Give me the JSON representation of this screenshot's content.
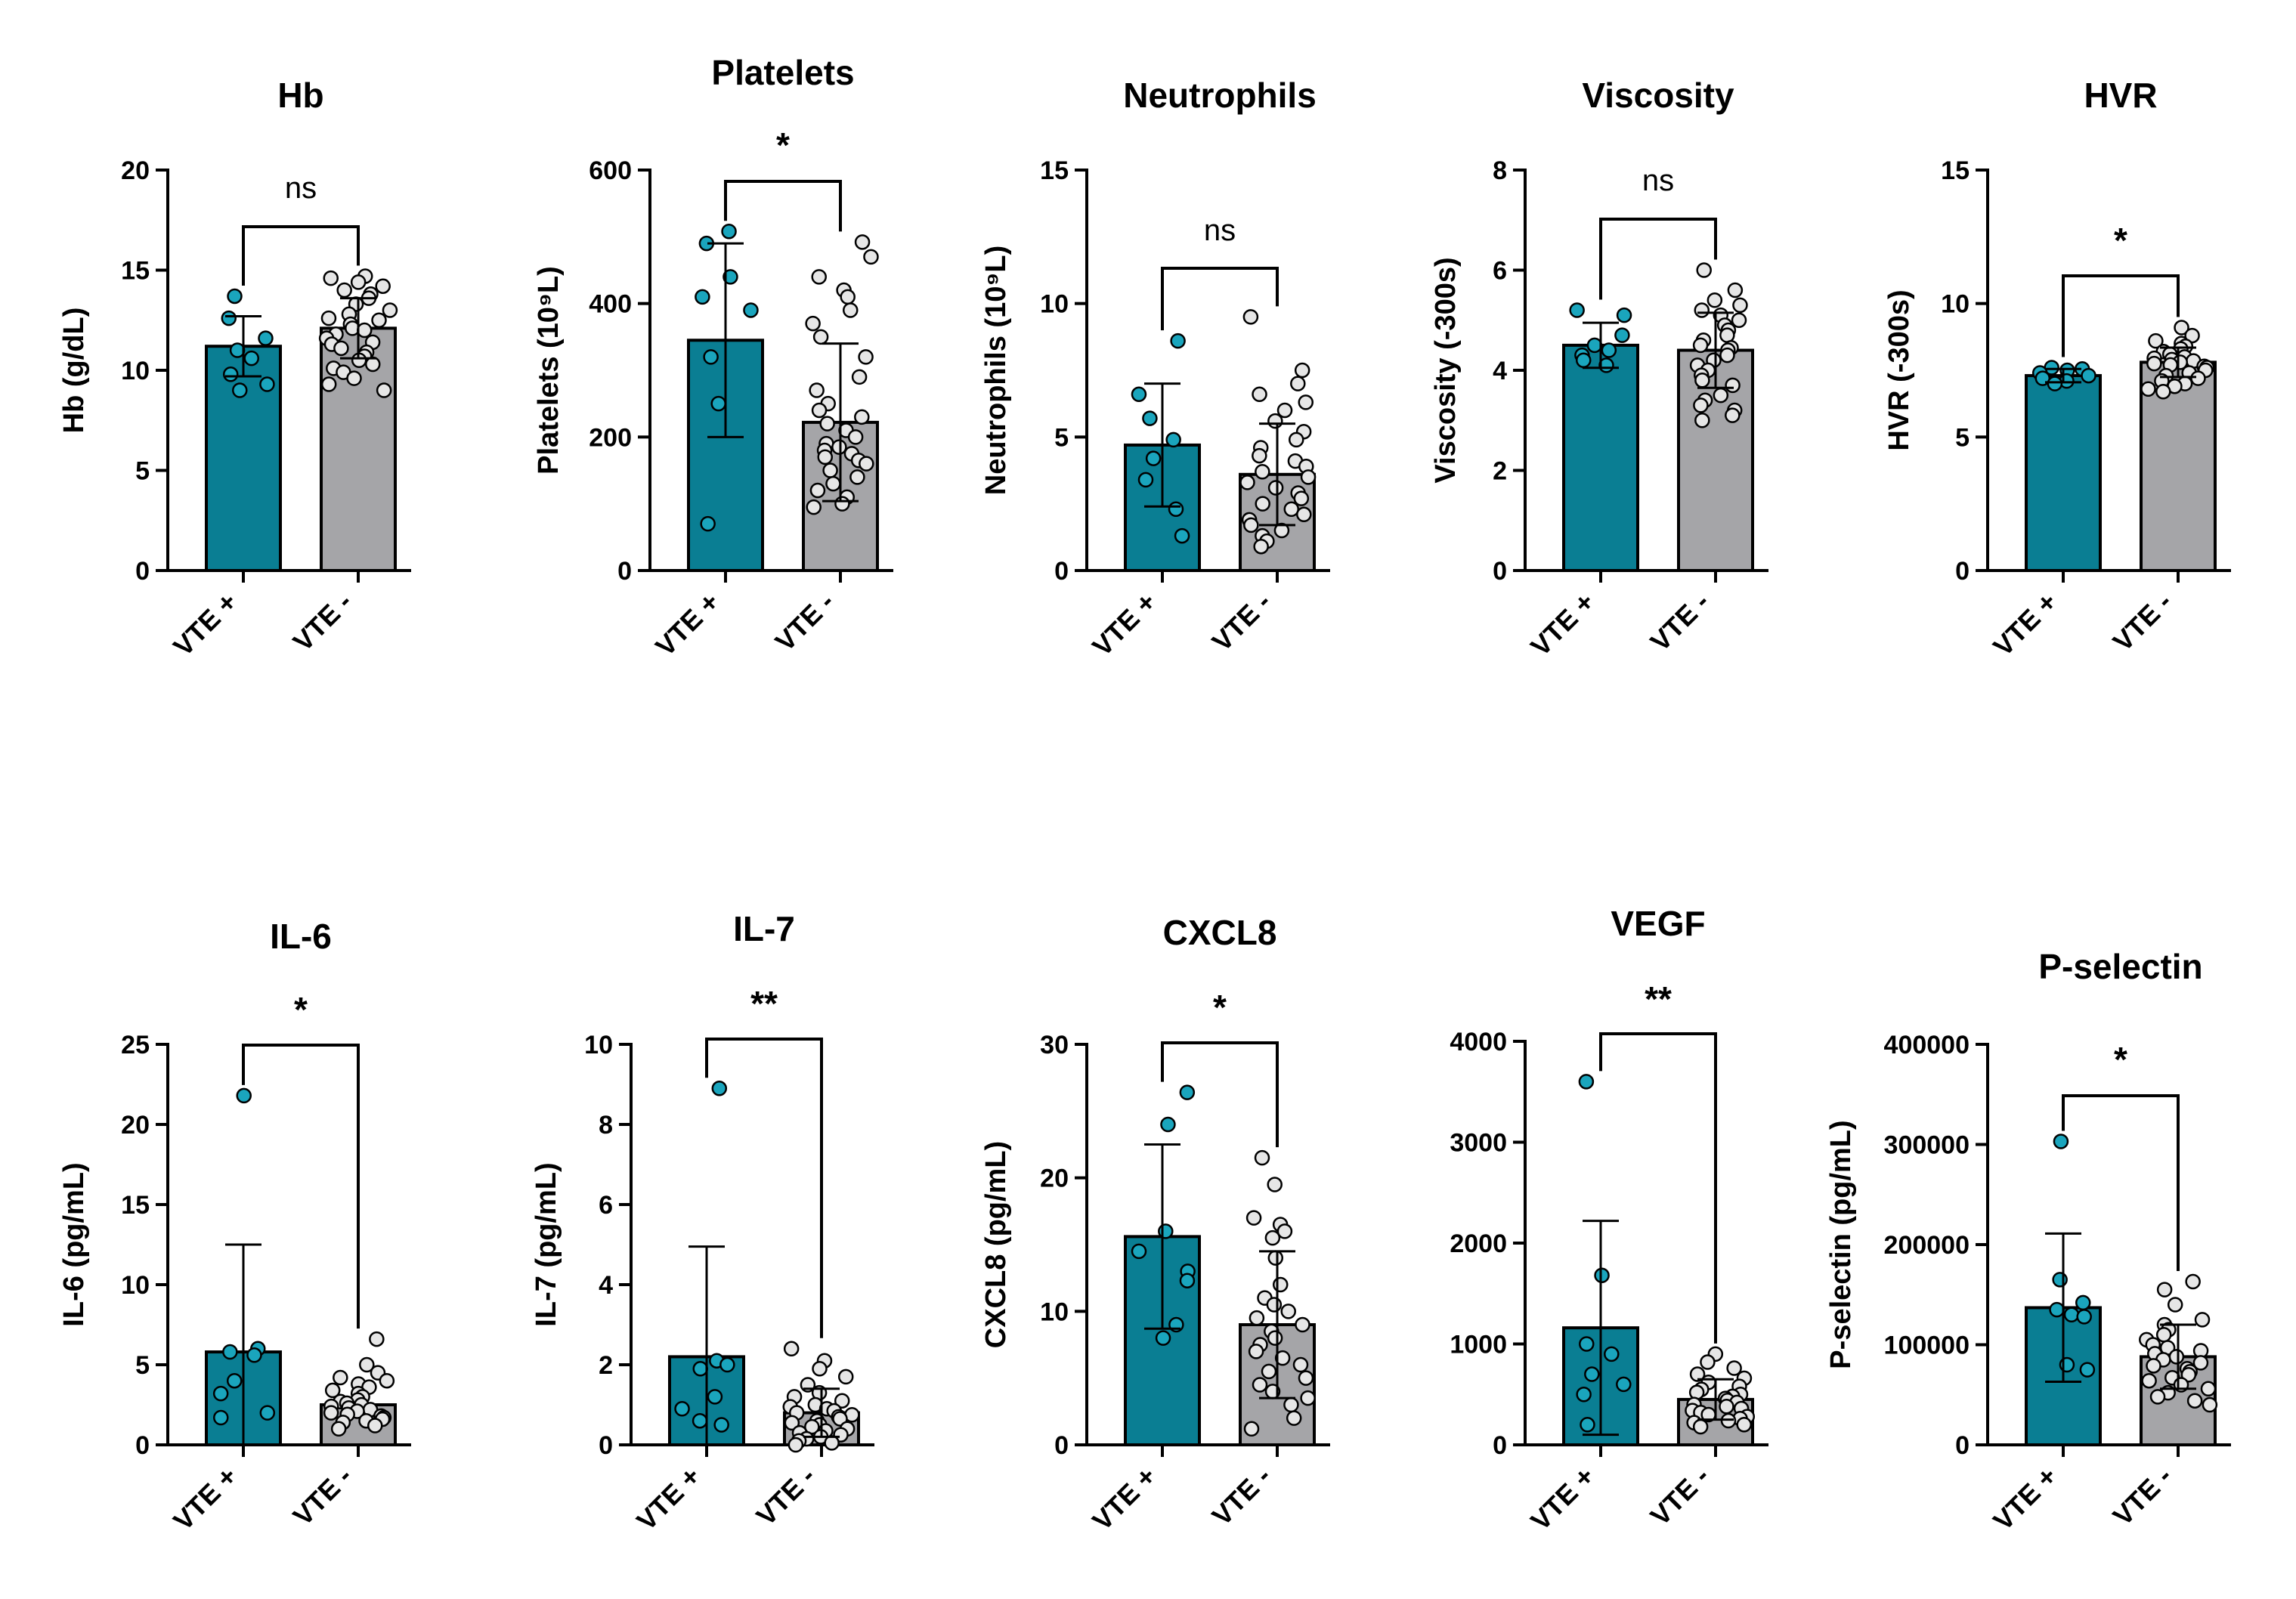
{
  "colors": {
    "vte_pos": "#0a7e93",
    "vte_neg": "#a5a5a8",
    "dot_pos": "#1aa5bd",
    "dot_neg": "#e6e6e6"
  },
  "chart_data": [
    {
      "id": "hb",
      "type": "bar",
      "title": "Hb",
      "ylabel": "Hb (g/dL)",
      "categories": [
        "VTE +",
        "VTE -"
      ],
      "ylim": [
        0,
        20
      ],
      "yticks": [
        0,
        5,
        10,
        15,
        20
      ],
      "series": [
        {
          "name": "mean",
          "values": [
            11.2,
            12.1
          ]
        }
      ],
      "sd": [
        1.5,
        1.5
      ],
      "significance": "ns",
      "points": [
        [
          13.7,
          12.6,
          11.6,
          11.0,
          10.6,
          9.8,
          9.3,
          9.0
        ],
        [
          14.7,
          14.6,
          14.4,
          14.2,
          14.0,
          13.8,
          13.6,
          13.3,
          13.0,
          12.8,
          12.6,
          12.5,
          12.3,
          12.1,
          12.0,
          11.8,
          11.6,
          11.4,
          11.3,
          11.1,
          10.9,
          10.7,
          10.5,
          10.3,
          10.1,
          9.9,
          9.6,
          9.3,
          9.0
        ]
      ]
    },
    {
      "id": "platelets",
      "type": "bar",
      "title": "Platelets",
      "ylabel": "Platelets (10⁹L)",
      "categories": [
        "VTE +",
        "VTE -"
      ],
      "ylim": [
        0,
        600
      ],
      "yticks": [
        0,
        200,
        400,
        600
      ],
      "series": [
        {
          "name": "mean",
          "values": [
            345,
            222
          ]
        }
      ],
      "sd": [
        145,
        118
      ],
      "significance": "*",
      "points": [
        [
          508,
          490,
          440,
          410,
          390,
          320,
          250,
          70
        ],
        [
          492,
          470,
          440,
          420,
          410,
          390,
          370,
          350,
          320,
          290,
          270,
          250,
          240,
          230,
          220,
          210,
          200,
          190,
          185,
          180,
          175,
          170,
          165,
          160,
          150,
          140,
          130,
          120,
          110,
          100,
          95
        ]
      ]
    },
    {
      "id": "neutrophils",
      "type": "bar",
      "title": "Neutrophils",
      "ylabel": "Neutrophils (10⁹L)",
      "categories": [
        "VTE +",
        "VTE -"
      ],
      "ylim": [
        0,
        15
      ],
      "yticks": [
        0,
        5,
        10,
        15
      ],
      "series": [
        {
          "name": "mean",
          "values": [
            4.7,
            3.6
          ]
        }
      ],
      "sd": [
        2.3,
        1.9
      ],
      "significance": "ns",
      "points": [
        [
          8.6,
          6.6,
          5.7,
          4.9,
          4.2,
          3.4,
          2.3,
          1.3
        ],
        [
          9.5,
          7.5,
          7.0,
          6.6,
          6.3,
          6.0,
          5.6,
          5.2,
          4.9,
          4.6,
          4.3,
          4.1,
          3.9,
          3.7,
          3.5,
          3.3,
          3.1,
          2.9,
          2.7,
          2.5,
          2.3,
          2.1,
          1.9,
          1.7,
          1.5,
          1.3,
          1.1,
          0.9
        ]
      ]
    },
    {
      "id": "viscosity",
      "type": "bar",
      "title": "Viscosity",
      "ylabel": "Viscosity (-300s)",
      "categories": [
        "VTE +",
        "VTE -"
      ],
      "ylim": [
        0,
        8
      ],
      "yticks": [
        0,
        2,
        4,
        6,
        8
      ],
      "series": [
        {
          "name": "mean",
          "values": [
            4.5,
            4.4
          ]
        }
      ],
      "sd": [
        0.45,
        0.75
      ],
      "significance": "ns",
      "points": [
        [
          5.2,
          5.1,
          4.7,
          4.5,
          4.4,
          4.3,
          4.2,
          4.1
        ],
        [
          6.0,
          5.6,
          5.4,
          5.3,
          5.2,
          5.1,
          5.0,
          4.9,
          4.8,
          4.7,
          4.6,
          4.5,
          4.45,
          4.4,
          4.3,
          4.2,
          4.1,
          4.0,
          3.9,
          3.8,
          3.7,
          3.5,
          3.4,
          3.3,
          3.2,
          3.1,
          3.0
        ]
      ]
    },
    {
      "id": "hvr",
      "type": "bar",
      "title": "HVR",
      "ylabel": "HVR (-300s)",
      "categories": [
        "VTE +",
        "VTE -"
      ],
      "ylim": [
        0,
        15
      ],
      "yticks": [
        0,
        5,
        10,
        15
      ],
      "series": [
        {
          "name": "mean",
          "values": [
            7.3,
            7.8
          ]
        }
      ],
      "sd": [
        0.25,
        0.55
      ],
      "significance": "*",
      "points": [
        [
          7.6,
          7.55,
          7.5,
          7.4,
          7.3,
          7.2,
          7.1,
          7.0
        ],
        [
          9.1,
          8.8,
          8.6,
          8.5,
          8.4,
          8.3,
          8.2,
          8.1,
          8.0,
          7.95,
          7.9,
          7.85,
          7.8,
          7.75,
          7.7,
          7.65,
          7.6,
          7.5,
          7.4,
          7.3,
          7.2,
          7.1,
          7.0,
          6.9,
          6.8,
          6.7
        ]
      ]
    },
    {
      "id": "il6",
      "type": "bar",
      "title": "IL-6",
      "ylabel": "IL-6 (pg/mL)",
      "categories": [
        "VTE +",
        "VTE -"
      ],
      "ylim": [
        0,
        25
      ],
      "yticks": [
        0,
        5,
        10,
        15,
        20,
        25
      ],
      "series": [
        {
          "name": "mean",
          "values": [
            5.8,
            2.5
          ]
        }
      ],
      "sd": [
        6.7,
        0
      ],
      "significance": "*",
      "points": [
        [
          21.8,
          6.0,
          5.8,
          5.6,
          4.0,
          3.2,
          2.0,
          1.7
        ],
        [
          6.6,
          5.0,
          4.5,
          4.2,
          4.0,
          3.8,
          3.6,
          3.4,
          3.2,
          3.0,
          2.8,
          2.7,
          2.6,
          2.5,
          2.4,
          2.3,
          2.2,
          2.1,
          2.0,
          1.9,
          1.8,
          1.7,
          1.6,
          1.5,
          1.4,
          1.2,
          1.0
        ]
      ]
    },
    {
      "id": "il7",
      "type": "bar",
      "title": "IL-7",
      "ylabel": "IL-7 (pg/mL)",
      "categories": [
        "VTE +",
        "VTE -"
      ],
      "ylim": [
        0,
        10
      ],
      "yticks": [
        0,
        2,
        4,
        6,
        8,
        10
      ],
      "series": [
        {
          "name": "mean",
          "values": [
            2.2,
            0.8
          ]
        }
      ],
      "sd": [
        2.75,
        0.6
      ],
      "significance": "**",
      "points": [
        [
          8.9,
          2.1,
          2.0,
          1.9,
          1.2,
          0.9,
          0.6,
          0.5
        ],
        [
          2.4,
          2.1,
          1.9,
          1.7,
          1.5,
          1.3,
          1.2,
          1.1,
          1.0,
          0.95,
          0.9,
          0.85,
          0.8,
          0.75,
          0.7,
          0.65,
          0.6,
          0.55,
          0.5,
          0.45,
          0.4,
          0.35,
          0.3,
          0.25,
          0.2,
          0.15,
          0.1,
          0.05,
          0.0
        ]
      ]
    },
    {
      "id": "cxcl8",
      "type": "bar",
      "title": "CXCL8",
      "ylabel": "CXCL8 (pg/mL)",
      "categories": [
        "VTE +",
        "VTE -"
      ],
      "ylim": [
        0,
        30
      ],
      "yticks": [
        0,
        10,
        20,
        30
      ],
      "series": [
        {
          "name": "mean",
          "values": [
            15.6,
            9.0
          ]
        }
      ],
      "sd": [
        6.9,
        5.5
      ],
      "significance": "*",
      "points": [
        [
          26.4,
          24.0,
          16.0,
          14.5,
          13.0,
          12.3,
          9.0,
          8.0
        ],
        [
          21.5,
          19.5,
          17.0,
          16.5,
          16.0,
          15.5,
          14.0,
          12.0,
          11.0,
          10.5,
          10.0,
          9.5,
          9.0,
          8.5,
          8.0,
          7.5,
          7.0,
          6.5,
          6.0,
          5.5,
          5.0,
          4.5,
          4.0,
          3.5,
          3.0,
          2.0,
          1.2
        ]
      ]
    },
    {
      "id": "vegf",
      "type": "bar",
      "title": "VEGF",
      "ylabel": "",
      "categories": [
        "VTE +",
        "VTE -"
      ],
      "ylim": [
        0,
        4000
      ],
      "yticks": [
        0,
        1000,
        2000,
        3000,
        4000
      ],
      "series": [
        {
          "name": "mean",
          "values": [
            1160,
            450
          ]
        }
      ],
      "sd": [
        1060,
        200
      ],
      "significance": "**",
      "points": [
        [
          3600,
          1680,
          1000,
          900,
          700,
          600,
          500,
          200
        ],
        [
          900,
          820,
          760,
          700,
          660,
          620,
          580,
          550,
          520,
          500,
          480,
          460,
          440,
          420,
          400,
          380,
          360,
          340,
          320,
          300,
          280,
          260,
          240,
          220,
          200,
          180
        ]
      ]
    },
    {
      "id": "pselectin",
      "type": "bar",
      "title": "P-selectin",
      "ylabel": "P-selectin (pg/mL)",
      "categories": [
        "VTE +",
        "VTE -"
      ],
      "ylim": [
        0,
        400000
      ],
      "yticks": [
        0,
        100000,
        200000,
        300000,
        400000
      ],
      "series": [
        {
          "name": "mean",
          "values": [
            137000,
            88000
          ]
        }
      ],
      "sd": [
        74000,
        32000
      ],
      "significance": "*",
      "points": [
        [
          303000,
          165000,
          142000,
          135000,
          130000,
          128000,
          80000,
          75000
        ],
        [
          163000,
          155000,
          140000,
          125000,
          120000,
          115000,
          110000,
          105000,
          100000,
          97000,
          94000,
          91000,
          88000,
          85000,
          82000,
          79000,
          76000,
          73000,
          70000,
          67000,
          64000,
          60000,
          56000,
          52000,
          48000,
          44000,
          40000
        ]
      ]
    }
  ]
}
